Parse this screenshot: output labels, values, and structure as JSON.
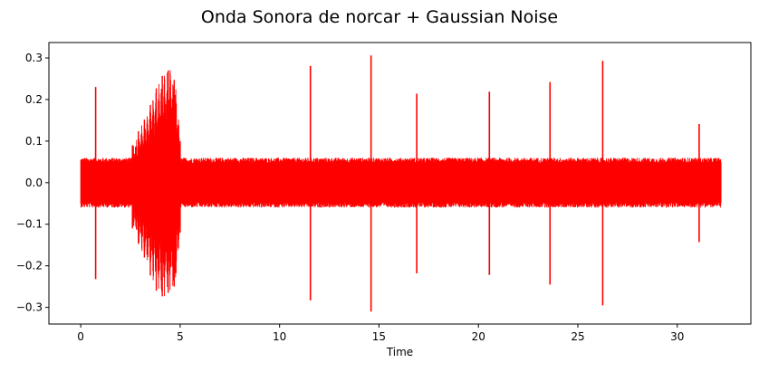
{
  "chart_data": {
    "type": "line",
    "title": "Onda Sonora de norcar + Gaussian Noise",
    "xlabel": "Time",
    "ylabel": "",
    "xlim": [
      -1.6,
      33.7
    ],
    "ylim": [
      -0.34,
      0.337
    ],
    "xticks": [
      0,
      5,
      10,
      15,
      20,
      25,
      30
    ],
    "xtick_labels": [
      "0",
      "5",
      "10",
      "15",
      "20",
      "25",
      "30"
    ],
    "yticks": [
      -0.3,
      -0.2,
      -0.1,
      0.0,
      0.1,
      0.2,
      0.3
    ],
    "ytick_labels": [
      "−0.3",
      "−0.2",
      "−0.1",
      "0.0",
      "0.1",
      "0.2",
      "0.3"
    ],
    "grid": false,
    "legend": "none",
    "series": [
      {
        "color": "#ff0000",
        "duration": 32.2,
        "noise_band": [
          -0.06,
          0.06
        ],
        "envelope": [
          {
            "x": 2.6,
            "upper": 0.09,
            "lower": -0.11
          },
          {
            "x": 3.0,
            "upper": 0.135,
            "lower": -0.16
          },
          {
            "x": 3.3,
            "upper": 0.16,
            "lower": -0.19
          },
          {
            "x": 3.6,
            "upper": 0.2,
            "lower": -0.24
          },
          {
            "x": 3.9,
            "upper": 0.24,
            "lower": -0.27
          },
          {
            "x": 4.2,
            "upper": 0.265,
            "lower": -0.275
          },
          {
            "x": 4.5,
            "upper": 0.272,
            "lower": -0.26
          },
          {
            "x": 4.8,
            "upper": 0.235,
            "lower": -0.245
          },
          {
            "x": 5.0,
            "upper": 0.1,
            "lower": -0.12
          }
        ],
        "spikes": [
          {
            "x": 0.75,
            "top": 0.23,
            "bottom": -0.232
          },
          {
            "x": 11.55,
            "top": 0.281,
            "bottom": -0.283
          },
          {
            "x": 14.6,
            "top": 0.306,
            "bottom": -0.31
          },
          {
            "x": 16.9,
            "top": 0.214,
            "bottom": -0.218
          },
          {
            "x": 20.55,
            "top": 0.219,
            "bottom": -0.222
          },
          {
            "x": 23.6,
            "top": 0.242,
            "bottom": -0.245
          },
          {
            "x": 26.25,
            "top": 0.293,
            "bottom": -0.295
          },
          {
            "x": 31.1,
            "top": 0.141,
            "bottom": -0.143
          }
        ]
      }
    ]
  }
}
